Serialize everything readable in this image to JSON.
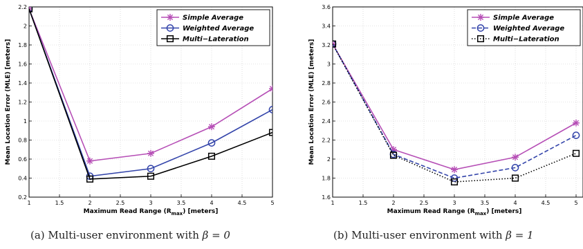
{
  "chart_data": [
    {
      "type": "line",
      "xlabel": "Maximum Read Range (R",
      "xlabel_sub": "max",
      "xlabel_tail": ") [meters]",
      "ylabel": "Mean Location Error (MLE) [meters]",
      "xlim": [
        1,
        5
      ],
      "ylim": [
        0.2,
        2.2
      ],
      "xticks": [
        "1",
        "1.5",
        "2",
        "2.5",
        "3",
        "3.5",
        "4",
        "4.5",
        "5"
      ],
      "yticks": [
        "0.2",
        "0.4",
        "0.6",
        "0.8",
        "1",
        "1.2",
        "1.4",
        "1.6",
        "1.8",
        "2",
        "2.2"
      ],
      "grid": true,
      "legend_position": "top-right",
      "x": [
        1,
        2,
        3,
        4,
        5
      ],
      "series": [
        {
          "name": "Simple Average",
          "values": [
            2.18,
            0.58,
            0.66,
            0.94,
            1.34
          ],
          "color": "#b64fb6",
          "marker": "star",
          "dash": "solid"
        },
        {
          "name": "Weighted Average",
          "values": [
            2.18,
            0.42,
            0.5,
            0.77,
            1.12
          ],
          "color": "#3344aa",
          "marker": "circle",
          "dash": "solid"
        },
        {
          "name": "Multi−Lateration",
          "values": [
            2.18,
            0.39,
            0.42,
            0.63,
            0.88
          ],
          "color": "#000000",
          "marker": "square",
          "dash": "solid"
        }
      ],
      "caption_prefix": "(a)  Multi-user environment with ",
      "caption_math": "β = 0"
    },
    {
      "type": "line",
      "xlabel": "Maximum Read Range (R",
      "xlabel_sub": "max",
      "xlabel_tail": ") [meters]",
      "ylabel": "Mean Location Error (MLE) [meters]",
      "xlim": [
        1,
        5
      ],
      "ylim": [
        1.6,
        3.6
      ],
      "xticks": [
        "1",
        "1.5",
        "2",
        "2.5",
        "3",
        "3.5",
        "4",
        "4.5",
        "5"
      ],
      "yticks": [
        "1.6",
        "1.8",
        "2",
        "2.2",
        "2.4",
        "2.6",
        "2.8",
        "3",
        "3.2",
        "3.4",
        "3.6"
      ],
      "grid": true,
      "legend_position": "top-right",
      "x": [
        1,
        2,
        3,
        4,
        5
      ],
      "series": [
        {
          "name": "Simple Average",
          "values": [
            3.21,
            2.1,
            1.89,
            2.02,
            2.38
          ],
          "color": "#b64fb6",
          "marker": "star",
          "dash": "solid"
        },
        {
          "name": "Weighted Average",
          "values": [
            3.21,
            2.05,
            1.8,
            1.91,
            2.25
          ],
          "color": "#3344aa",
          "marker": "circle",
          "dash": "dashed"
        },
        {
          "name": "Multi−Lateration",
          "values": [
            3.21,
            2.04,
            1.76,
            1.8,
            2.06
          ],
          "color": "#000000",
          "marker": "square",
          "dash": "dotted"
        }
      ],
      "caption_prefix": "(b)  Multi-user environment with ",
      "caption_math": "β = 1"
    }
  ]
}
